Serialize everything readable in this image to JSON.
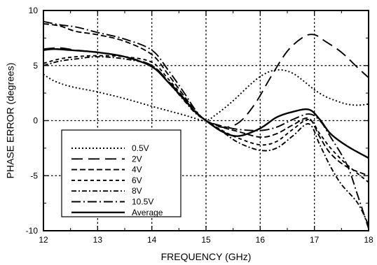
{
  "chart_data": {
    "type": "line",
    "title": "",
    "xlabel": "FREQUENCY (GHz)",
    "ylabel": "PHASE ERROR (degrees)",
    "xlim": [
      12,
      18
    ],
    "ylim": [
      -10,
      10
    ],
    "xticks": [
      "12",
      "13",
      "14",
      "15",
      "16",
      "17",
      "18"
    ],
    "yticks": [
      "10",
      "5",
      "0",
      "-5",
      "-10"
    ],
    "grid": true,
    "legend_position": "lower-left",
    "series": [
      {
        "name": "0.5V",
        "dash": "dotted",
        "x": [
          12,
          12.2,
          12.5,
          13,
          13.5,
          14,
          14.3,
          14.6,
          14.8,
          15,
          15.2,
          15.5,
          15.8,
          16,
          16.2,
          16.4,
          16.6,
          16.8,
          17,
          17.2,
          17.4,
          17.6,
          17.8,
          18
        ],
        "y": [
          4.2,
          3.6,
          3.1,
          2.6,
          2.0,
          1.3,
          0.9,
          0.5,
          0.2,
          0.0,
          0.6,
          1.8,
          3.2,
          4.0,
          4.5,
          4.6,
          4.3,
          3.6,
          2.8,
          2.2,
          1.8,
          1.5,
          1.4,
          1.5
        ]
      },
      {
        "name": "2V",
        "dash": "long-dash",
        "x": [
          12,
          12.3,
          12.6,
          13,
          13.5,
          14,
          14.3,
          14.6,
          14.8,
          15,
          15.3,
          15.6,
          15.9,
          16.2,
          16.5,
          16.8,
          17,
          17.2,
          17.5,
          17.8,
          18
        ],
        "y": [
          6.5,
          6.6,
          6.4,
          6.2,
          5.8,
          5.0,
          3.6,
          2.0,
          0.8,
          0.0,
          -0.6,
          -0.2,
          1.5,
          4.0,
          6.3,
          7.6,
          7.8,
          7.2,
          6.2,
          4.8,
          3.9
        ]
      },
      {
        "name": "4V",
        "dash": "dashed",
        "x": [
          12,
          12.3,
          12.6,
          13,
          13.5,
          14,
          14.3,
          14.6,
          14.8,
          15,
          15.3,
          15.6,
          16,
          16.3,
          16.6,
          16.9,
          17.1,
          17.3,
          17.6,
          18
        ],
        "y": [
          8.8,
          8.6,
          8.1,
          7.8,
          7.2,
          6.0,
          4.2,
          2.2,
          0.9,
          0.0,
          -0.6,
          -1.0,
          -1.5,
          -1.2,
          -0.4,
          0.2,
          -1.5,
          -3.0,
          -4.2,
          -5.0
        ]
      },
      {
        "name": "6V",
        "dash": "short-dash",
        "x": [
          12,
          12.3,
          12.6,
          13,
          13.5,
          14,
          14.3,
          14.6,
          14.8,
          15,
          15.3,
          15.6,
          16,
          16.3,
          16.6,
          16.9,
          17.1,
          17.3,
          17.6,
          18
        ],
        "y": [
          5.2,
          5.6,
          5.8,
          5.9,
          5.8,
          5.3,
          3.8,
          2.0,
          0.8,
          0.0,
          -0.9,
          -1.6,
          -2.2,
          -1.9,
          -0.8,
          0.1,
          -1.2,
          -2.5,
          -4.0,
          -5.6
        ]
      },
      {
        "name": "8V",
        "dash": "dash-dot",
        "x": [
          12,
          12.3,
          12.6,
          13,
          13.5,
          14,
          14.3,
          14.6,
          14.8,
          15,
          15.3,
          15.6,
          16,
          16.3,
          16.6,
          16.9,
          17.1,
          17.3,
          17.5,
          17.8,
          18
        ],
        "y": [
          5.0,
          5.4,
          5.6,
          5.8,
          5.6,
          5.0,
          3.5,
          1.8,
          0.7,
          0.0,
          -1.0,
          -2.0,
          -2.7,
          -2.5,
          -1.4,
          -0.3,
          -2.2,
          -4.2,
          -5.8,
          -7.5,
          -9.5
        ]
      },
      {
        "name": "10.5V",
        "dash": "long-dash-dot",
        "x": [
          12,
          12.3,
          12.6,
          13,
          13.5,
          14,
          14.3,
          14.6,
          14.8,
          15,
          15.3,
          15.6,
          16,
          16.3,
          16.6,
          16.9,
          17.1,
          17.3,
          17.6,
          17.8,
          18
        ],
        "y": [
          9.0,
          8.7,
          8.5,
          8.0,
          7.4,
          6.4,
          4.6,
          2.5,
          1.0,
          0.0,
          -0.5,
          -0.8,
          -0.9,
          -0.6,
          0.1,
          0.6,
          0.0,
          -1.5,
          -4.0,
          -6.8,
          -9.8
        ]
      },
      {
        "name": "Average",
        "dash": "solid",
        "x": [
          12,
          12.2,
          12.5,
          13,
          13.5,
          14,
          14.3,
          14.6,
          14.8,
          15,
          15.3,
          15.6,
          16,
          16.3,
          16.6,
          16.9,
          17.1,
          17.3,
          17.6,
          18
        ],
        "y": [
          6.4,
          6.5,
          6.4,
          6.2,
          5.8,
          4.9,
          3.5,
          1.9,
          0.8,
          0.0,
          -1.0,
          -1.4,
          -0.7,
          0.3,
          0.8,
          1.0,
          0.1,
          -1.2,
          -2.3,
          -3.4
        ]
      }
    ]
  }
}
